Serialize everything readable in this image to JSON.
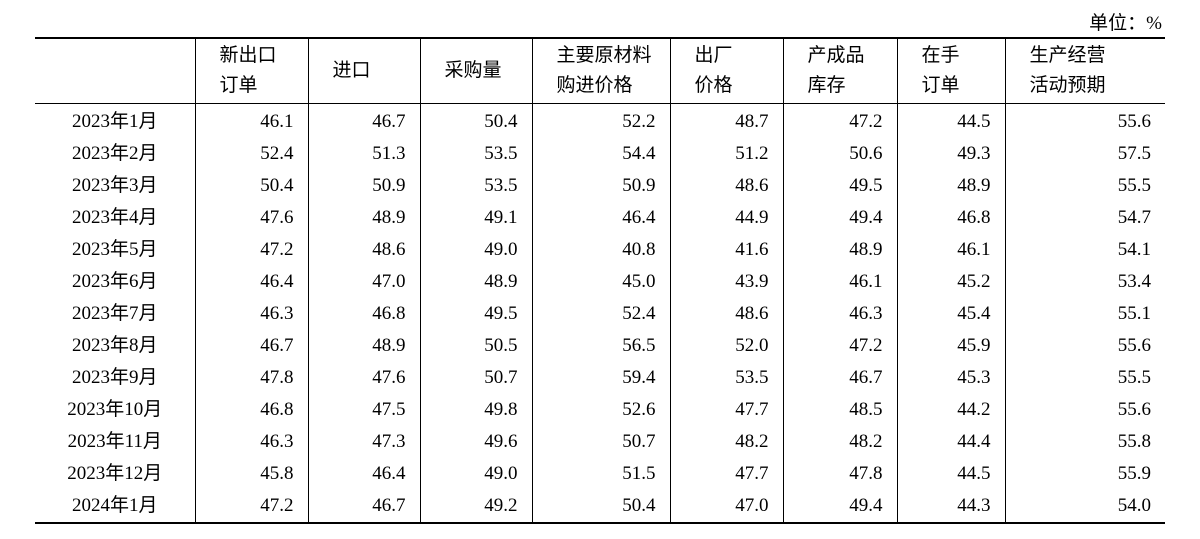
{
  "unit": "单位：%",
  "header": [
    [],
    [
      "新出口",
      "订单"
    ],
    [
      "进口"
    ],
    [
      "采购量"
    ],
    [
      "主要原材料",
      "购进价格"
    ],
    [
      "出厂",
      "价格"
    ],
    [
      "产成品",
      "库存"
    ],
    [
      "在手",
      "订单"
    ],
    [
      "生产经营",
      "活动预期"
    ]
  ],
  "rows": [
    [
      "2023年1月",
      "46.1",
      "46.7",
      "50.4",
      "52.2",
      "48.7",
      "47.2",
      "44.5",
      "55.6"
    ],
    [
      "2023年2月",
      "52.4",
      "51.3",
      "53.5",
      "54.4",
      "51.2",
      "50.6",
      "49.3",
      "57.5"
    ],
    [
      "2023年3月",
      "50.4",
      "50.9",
      "53.5",
      "50.9",
      "48.6",
      "49.5",
      "48.9",
      "55.5"
    ],
    [
      "2023年4月",
      "47.6",
      "48.9",
      "49.1",
      "46.4",
      "44.9",
      "49.4",
      "46.8",
      "54.7"
    ],
    [
      "2023年5月",
      "47.2",
      "48.6",
      "49.0",
      "40.8",
      "41.6",
      "48.9",
      "46.1",
      "54.1"
    ],
    [
      "2023年6月",
      "46.4",
      "47.0",
      "48.9",
      "45.0",
      "43.9",
      "46.1",
      "45.2",
      "53.4"
    ],
    [
      "2023年7月",
      "46.3",
      "46.8",
      "49.5",
      "52.4",
      "48.6",
      "46.3",
      "45.4",
      "55.1"
    ],
    [
      "2023年8月",
      "46.7",
      "48.9",
      "50.5",
      "56.5",
      "52.0",
      "47.2",
      "45.9",
      "55.6"
    ],
    [
      "2023年9月",
      "47.8",
      "47.6",
      "50.7",
      "59.4",
      "53.5",
      "46.7",
      "45.3",
      "55.5"
    ],
    [
      "2023年10月",
      "46.8",
      "47.5",
      "49.8",
      "52.6",
      "47.7",
      "48.5",
      "44.2",
      "55.6"
    ],
    [
      "2023年11月",
      "46.3",
      "47.3",
      "49.6",
      "50.7",
      "48.2",
      "48.2",
      "44.4",
      "55.8"
    ],
    [
      "2023年12月",
      "45.8",
      "46.4",
      "49.0",
      "51.5",
      "47.7",
      "47.8",
      "44.5",
      "55.9"
    ],
    [
      "2024年1月",
      "47.2",
      "46.7",
      "49.2",
      "50.4",
      "47.0",
      "49.4",
      "44.3",
      "54.0"
    ]
  ]
}
